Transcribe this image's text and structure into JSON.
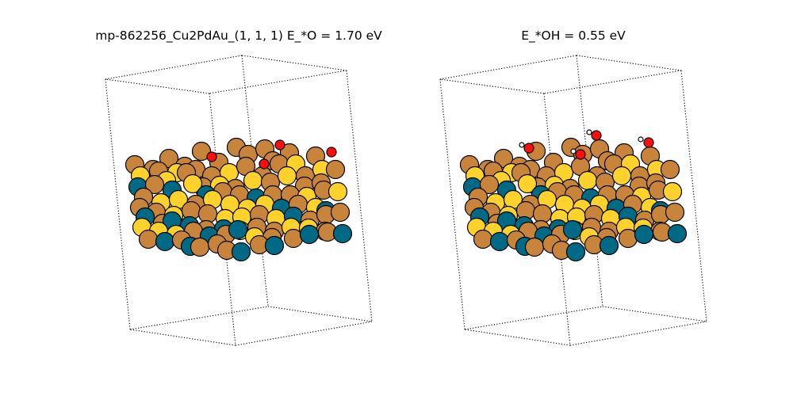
{
  "panels": [
    {
      "title": "mp-862256_Cu2PdAu_(1, 1, 1)  E_*O = 1.70 eV",
      "adsorbate": "O"
    },
    {
      "title": "E_*OH = 0.55 eV",
      "adsorbate": "OH"
    }
  ],
  "colors": {
    "Cu": "#c8843a",
    "Au": "#fdd22c",
    "Pd": "#006985",
    "O": "#ff0d0d",
    "H": "#ffffff",
    "cell_edge": "#000000",
    "atom_outline": "#000000"
  }
}
